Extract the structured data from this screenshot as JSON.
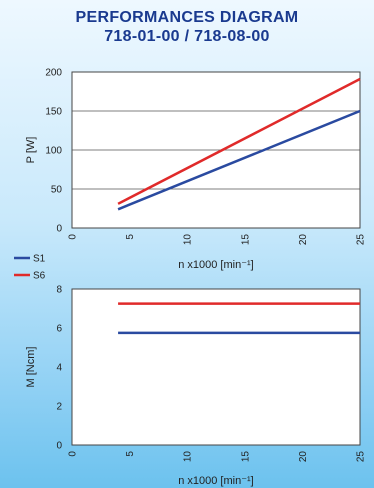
{
  "header": {
    "title_line1": "PERFORMANCES DIAGRAM",
    "title_line2": "718-01-00 / 718-08-00"
  },
  "legend": [
    {
      "name": "S1",
      "color": "#2a4aa0"
    },
    {
      "name": "S6",
      "color": "#e02a2a"
    }
  ],
  "chart_data": [
    {
      "type": "line",
      "xlabel": "n x1000 [min⁻¹]",
      "ylabel": "P [W]",
      "xlim": [
        0,
        25
      ],
      "ylim": [
        0,
        200
      ],
      "xticks": [
        0,
        5,
        10,
        15,
        20,
        25
      ],
      "yticks": [
        0,
        50,
        100,
        150,
        200
      ],
      "grid": true,
      "series": [
        {
          "name": "S1",
          "color": "#2a4aa0",
          "x": [
            4,
            25
          ],
          "y": [
            24,
            150
          ]
        },
        {
          "name": "S6",
          "color": "#e02a2a",
          "x": [
            4,
            25
          ],
          "y": [
            31,
            191
          ]
        }
      ]
    },
    {
      "type": "line",
      "xlabel": "n x1000 [min⁻¹]",
      "ylabel": "M [Ncm]",
      "xlim": [
        0,
        25
      ],
      "ylim": [
        0,
        8
      ],
      "xticks": [
        0,
        5,
        10,
        15,
        20,
        25
      ],
      "yticks": [
        0,
        2,
        4,
        6,
        8
      ],
      "grid": false,
      "series": [
        {
          "name": "S1",
          "color": "#2a4aa0",
          "x": [
            4,
            25
          ],
          "y": [
            5.75,
            5.75
          ]
        },
        {
          "name": "S6",
          "color": "#e02a2a",
          "x": [
            4,
            25
          ],
          "y": [
            7.25,
            7.25
          ]
        }
      ]
    }
  ]
}
